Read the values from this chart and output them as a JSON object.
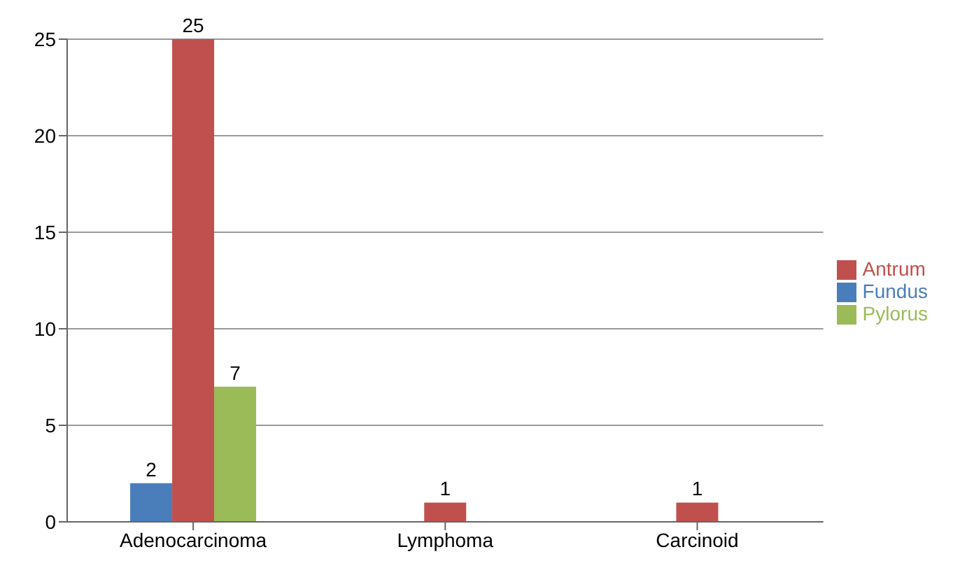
{
  "chart_data": {
    "type": "bar",
    "categories": [
      "Adenocarcinoma",
      "Lymphoma",
      "Carcinoid"
    ],
    "series": [
      {
        "name": "Fundus",
        "color": "#4a7ebb",
        "values": [
          2,
          null,
          null
        ]
      },
      {
        "name": "Antrum",
        "color": "#c0504d",
        "values": [
          25,
          1,
          1
        ]
      },
      {
        "name": "Pylorus",
        "color": "#9bbb59",
        "values": [
          7,
          null,
          null
        ]
      }
    ],
    "ylim": [
      0,
      25
    ],
    "yticks": [
      0,
      5,
      10,
      15,
      20,
      25
    ],
    "grid": "y",
    "legend": "right",
    "data_labels": true
  }
}
